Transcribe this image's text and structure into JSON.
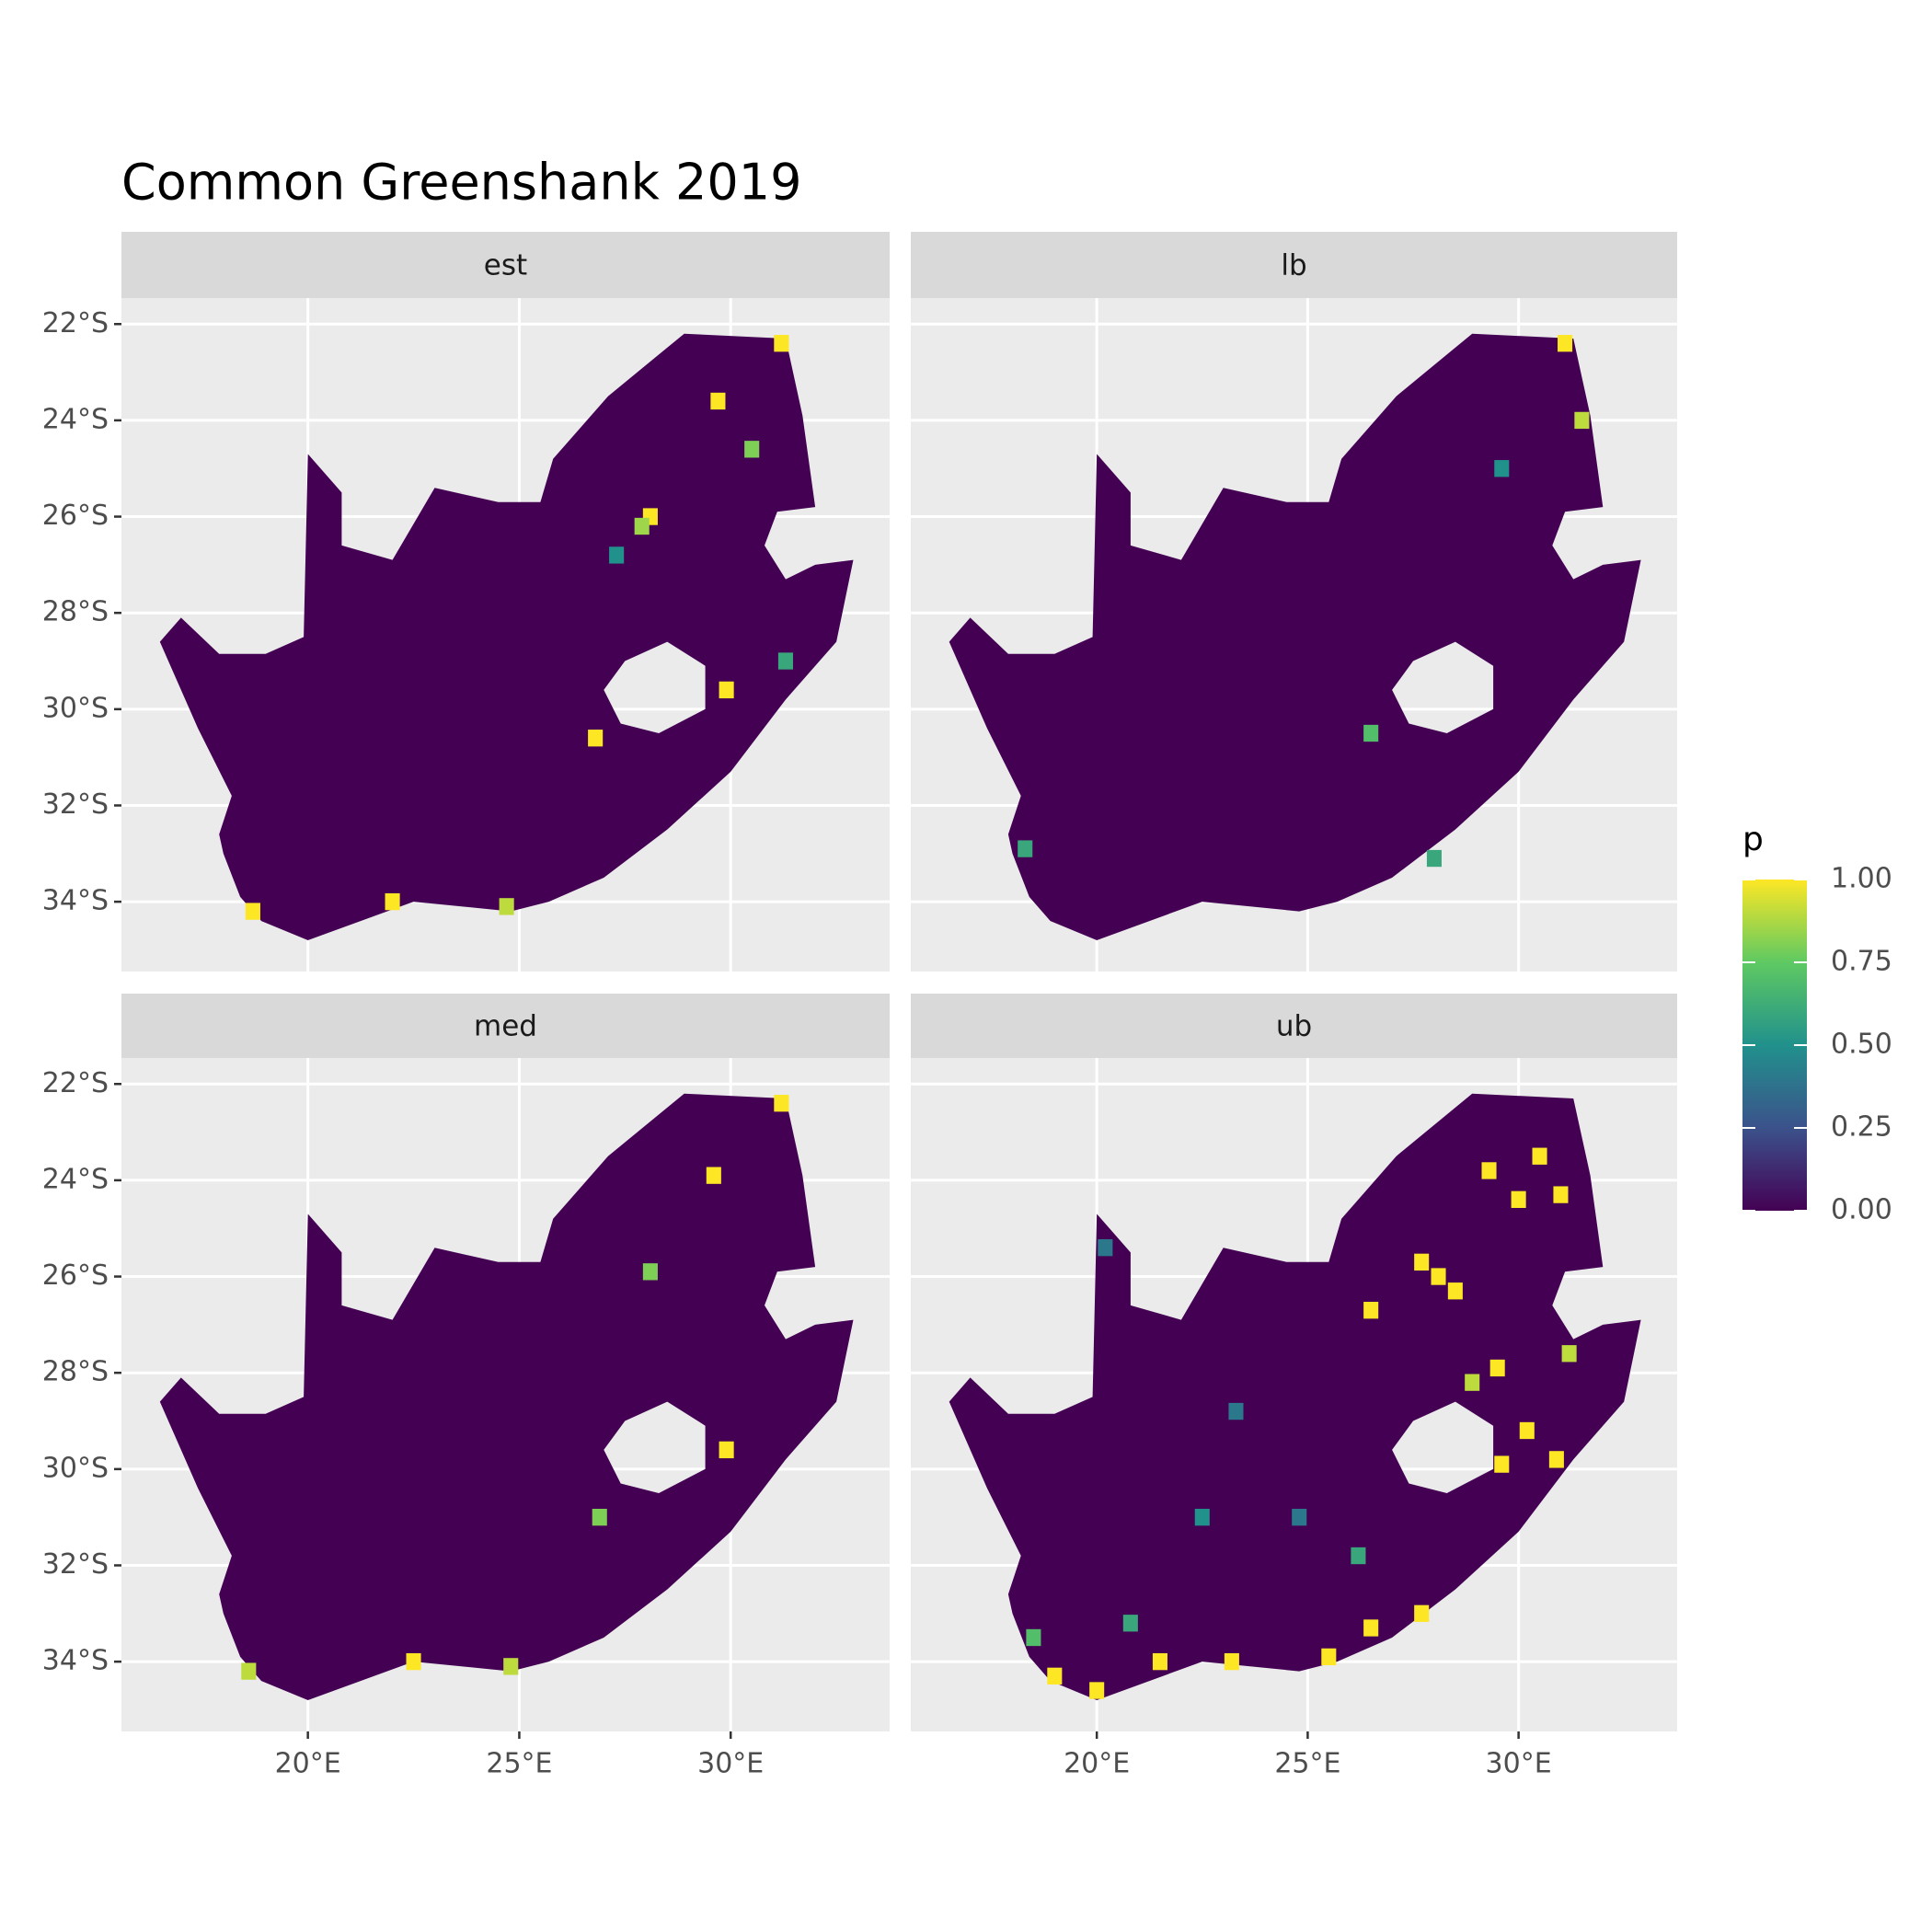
{
  "chart_data": {
    "type": "raster-map",
    "title": "Common Greenshank 2019",
    "xlim": [
      15.59,
      33.76
    ],
    "ylim": [
      -35.45,
      -21.46
    ],
    "xticks": [
      {
        "value": 20,
        "label": "20°E"
      },
      {
        "value": 25,
        "label": "25°E"
      },
      {
        "value": 30,
        "label": "30°E"
      }
    ],
    "yticks": [
      {
        "value": -22,
        "label": "22°S"
      },
      {
        "value": -24,
        "label": "24°S"
      },
      {
        "value": -26,
        "label": "26°S"
      },
      {
        "value": -28,
        "label": "28°S"
      },
      {
        "value": -30,
        "label": "30°S"
      },
      {
        "value": -32,
        "label": "32°S"
      },
      {
        "value": -34,
        "label": "34°S"
      }
    ],
    "grid": true,
    "legend": {
      "title": "p",
      "ticks": [
        {
          "value": 0,
          "label": "0.00"
        },
        {
          "value": 0.25,
          "label": "0.25"
        },
        {
          "value": 0.5,
          "label": "0.50"
        },
        {
          "value": 0.75,
          "label": "0.75"
        },
        {
          "value": 1,
          "label": "1.00"
        }
      ],
      "colors": [
        "#440154",
        "#3b528b",
        "#21918c",
        "#5ec962",
        "#fde725"
      ]
    },
    "facets": [
      {
        "name": "est",
        "lon": [
          28.1,
          27.9,
          31.2,
          29.7,
          30.5,
          29.9,
          18.7,
          22.0,
          26.8,
          24.7,
          31.3,
          27.3
        ],
        "lat": [
          -26.0,
          -26.2,
          -22.4,
          -23.6,
          -24.6,
          -29.6,
          -34.2,
          -34.0,
          -30.6,
          -34.1,
          -29.0,
          -26.8
        ],
        "p": [
          1,
          0.85,
          1,
          1,
          0.8,
          1,
          1,
          1,
          1,
          0.9,
          0.6,
          0.5
        ]
      },
      {
        "name": "lb",
        "lon": [
          31.1,
          31.5,
          29.6,
          26.5,
          18.3,
          28.0
        ],
        "lat": [
          -22.4,
          -24.0,
          -25.0,
          -30.5,
          -32.9,
          -33.1
        ],
        "p": [
          1,
          0.9,
          0.5,
          0.7,
          0.6,
          0.6
        ]
      },
      {
        "name": "med",
        "lon": [
          31.2,
          29.6,
          28.1,
          29.9,
          18.6,
          22.5,
          24.8,
          26.9
        ],
        "lat": [
          -22.4,
          -23.9,
          -25.9,
          -29.6,
          -34.2,
          -34.0,
          -34.1,
          -31.0
        ],
        "p": [
          1,
          1,
          0.8,
          1,
          0.9,
          1,
          0.9,
          0.8
        ]
      },
      {
        "name": "ub",
        "lon": [
          28.1,
          27.7,
          28.5,
          26.5,
          30.5,
          31.0,
          29.3,
          30.0,
          29.5,
          28.9,
          30.2,
          29.6,
          31.2,
          30.9,
          19.0,
          20.0,
          21.5,
          23.2,
          25.5,
          26.5,
          27.7,
          18.5,
          20.8,
          22.5,
          24.8,
          26.2,
          23.3,
          20.2
        ],
        "lat": [
          -26.0,
          -25.7,
          -26.3,
          -26.7,
          -23.5,
          -24.3,
          -23.8,
          -24.4,
          -27.9,
          -28.2,
          -29.2,
          -29.9,
          -27.6,
          -29.8,
          -34.3,
          -34.6,
          -34.0,
          -34.0,
          -33.9,
          -33.3,
          -33.0,
          -33.5,
          -33.2,
          -31.0,
          -31.0,
          -31.8,
          -28.8,
          -25.4
        ],
        "p": [
          1,
          1,
          1,
          1,
          1,
          1,
          1,
          1,
          1,
          0.9,
          1,
          1,
          0.9,
          1,
          1,
          1,
          1,
          1,
          1,
          1,
          1,
          0.7,
          0.6,
          0.5,
          0.4,
          0.6,
          0.4,
          0.4
        ]
      }
    ]
  }
}
